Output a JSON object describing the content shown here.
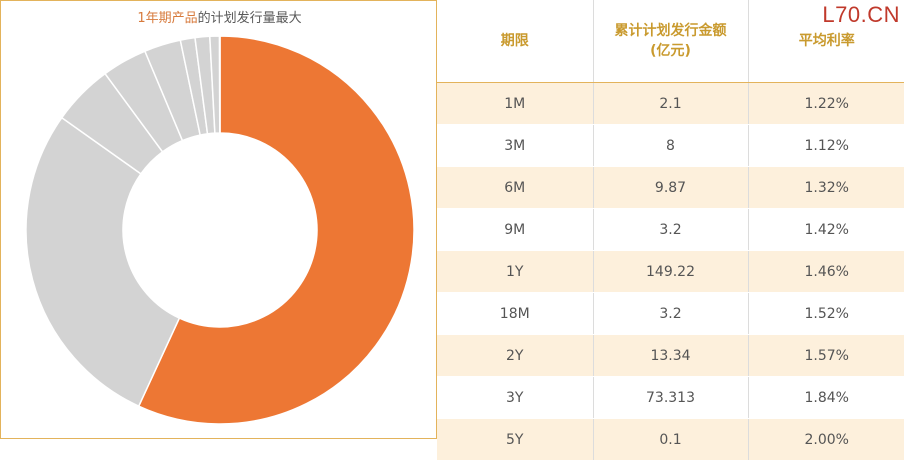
{
  "title": {
    "highlight": "1年期产品",
    "rest": "的计划发行量最大"
  },
  "watermark": "L70.CN",
  "table": {
    "headers": [
      "期限",
      "累计计划发行金额\n(亿元)",
      "平均利率"
    ],
    "rows": [
      [
        "1M",
        "2.1",
        "1.22%"
      ],
      [
        "3M",
        "8",
        "1.12%"
      ],
      [
        "6M",
        "9.87",
        "1.32%"
      ],
      [
        "9M",
        "3.2",
        "1.42%"
      ],
      [
        "1Y",
        "149.22",
        "1.46%"
      ],
      [
        "18M",
        "3.2",
        "1.52%"
      ],
      [
        "2Y",
        "13.34",
        "1.57%"
      ],
      [
        "3Y",
        "73.313",
        "1.84%"
      ],
      [
        "5Y",
        "0.1",
        "2.00%"
      ]
    ]
  },
  "chart_data": {
    "type": "pie",
    "style": "donut",
    "title": "1年期产品的计划发行量最大",
    "categories": [
      "1Y",
      "3Y",
      "2Y",
      "6M",
      "3M",
      "9M",
      "18M",
      "1M",
      "5Y"
    ],
    "values": [
      149.22,
      73.313,
      13.34,
      9.87,
      8,
      3.2,
      3.2,
      2.1,
      0.1
    ],
    "colors": {
      "highlight": "#ed7734",
      "other": "#d3d3d3",
      "separator": "#ffffff"
    },
    "highlight_category": "1Y",
    "legend": "none"
  }
}
